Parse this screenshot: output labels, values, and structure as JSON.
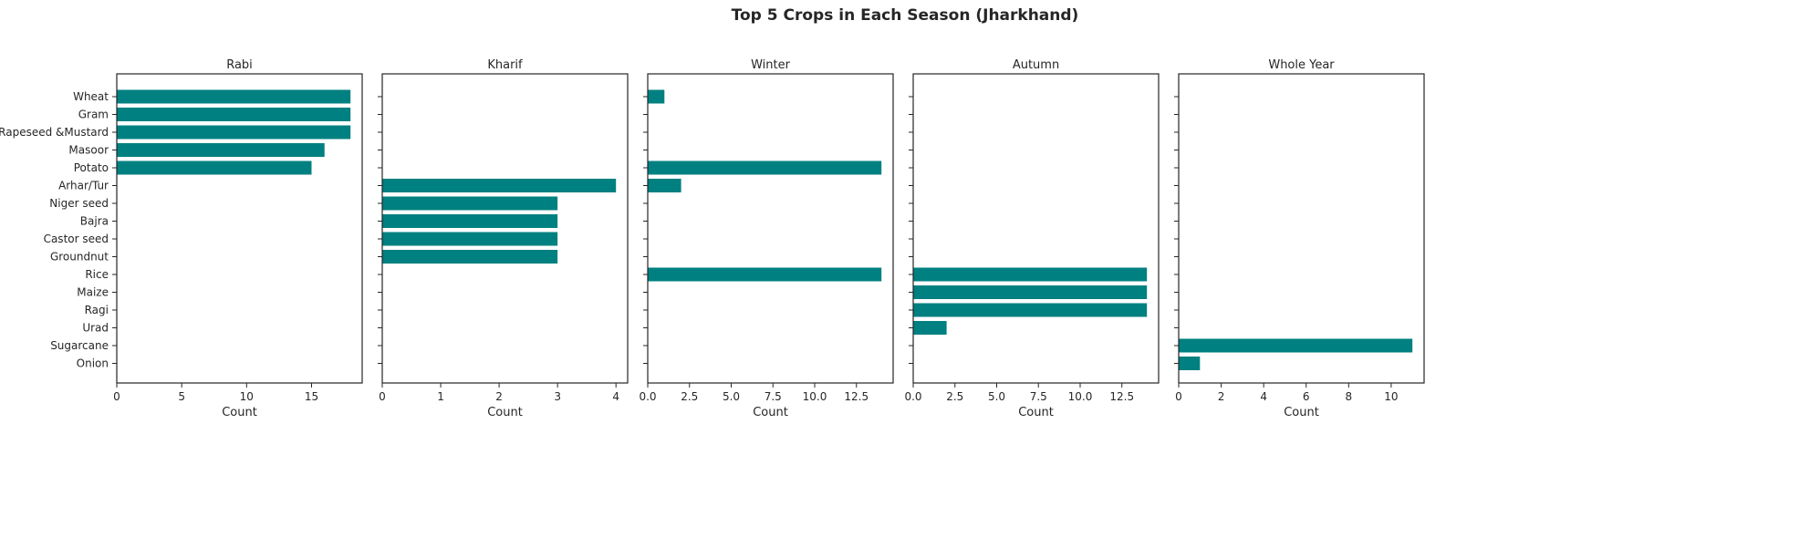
{
  "chart_data": {
    "type": "bar",
    "orientation": "horizontal",
    "title": "Top 5 Crops in Each Season (Jharkhand)",
    "categories": [
      "Wheat",
      "Gram",
      "Rapeseed &Mustard",
      "Masoor",
      "Potato",
      "Arhar/Tur",
      "Niger seed",
      "Bajra",
      "Castor seed",
      "Groundnut",
      "Rice",
      "Maize",
      "Ragi",
      "Urad",
      "Sugarcane",
      "Onion"
    ],
    "bar_color": "#008080",
    "grid": false,
    "panels": [
      {
        "title": "Rabi",
        "xlabel": "Count",
        "xlim": [
          0,
          18.9
        ],
        "xticks": [
          0,
          5,
          10,
          15
        ],
        "xtick_labels": [
          "0",
          "5",
          "10",
          "15"
        ],
        "values": {
          "Wheat": 18,
          "Gram": 18,
          "Rapeseed &Mustard": 18,
          "Masoor": 16,
          "Potato": 15
        }
      },
      {
        "title": "Kharif",
        "xlabel": "Count",
        "xlim": [
          0,
          4.2
        ],
        "xticks": [
          0,
          1,
          2,
          3,
          4
        ],
        "xtick_labels": [
          "0",
          "1",
          "2",
          "3",
          "4"
        ],
        "values": {
          "Arhar/Tur": 4,
          "Niger seed": 3,
          "Bajra": 3,
          "Castor seed": 3,
          "Groundnut": 3
        }
      },
      {
        "title": "Winter",
        "xlabel": "Count",
        "xlim": [
          0,
          14.7
        ],
        "xticks": [
          0,
          2.5,
          5,
          7.5,
          10,
          12.5
        ],
        "xtick_labels": [
          "0.0",
          "2.5",
          "5.0",
          "7.5",
          "10.0",
          "12.5"
        ],
        "values": {
          "Wheat": 1,
          "Potato": 14,
          "Arhar/Tur": 2,
          "Rice": 14
        }
      },
      {
        "title": "Autumn",
        "xlabel": "Count",
        "xlim": [
          0,
          14.7
        ],
        "xticks": [
          0,
          2.5,
          5,
          7.5,
          10,
          12.5
        ],
        "xtick_labels": [
          "0.0",
          "2.5",
          "5.0",
          "7.5",
          "10.0",
          "12.5"
        ],
        "values": {
          "Rice": 14,
          "Maize": 14,
          "Ragi": 14,
          "Urad": 2
        }
      },
      {
        "title": "Whole Year",
        "xlabel": "Count",
        "xlim": [
          0,
          11.55
        ],
        "xticks": [
          0,
          2,
          4,
          6,
          8,
          10
        ],
        "xtick_labels": [
          "0",
          "2",
          "4",
          "6",
          "8",
          "10"
        ],
        "values": {
          "Sugarcane": 11,
          "Onion": 1
        }
      }
    ]
  }
}
